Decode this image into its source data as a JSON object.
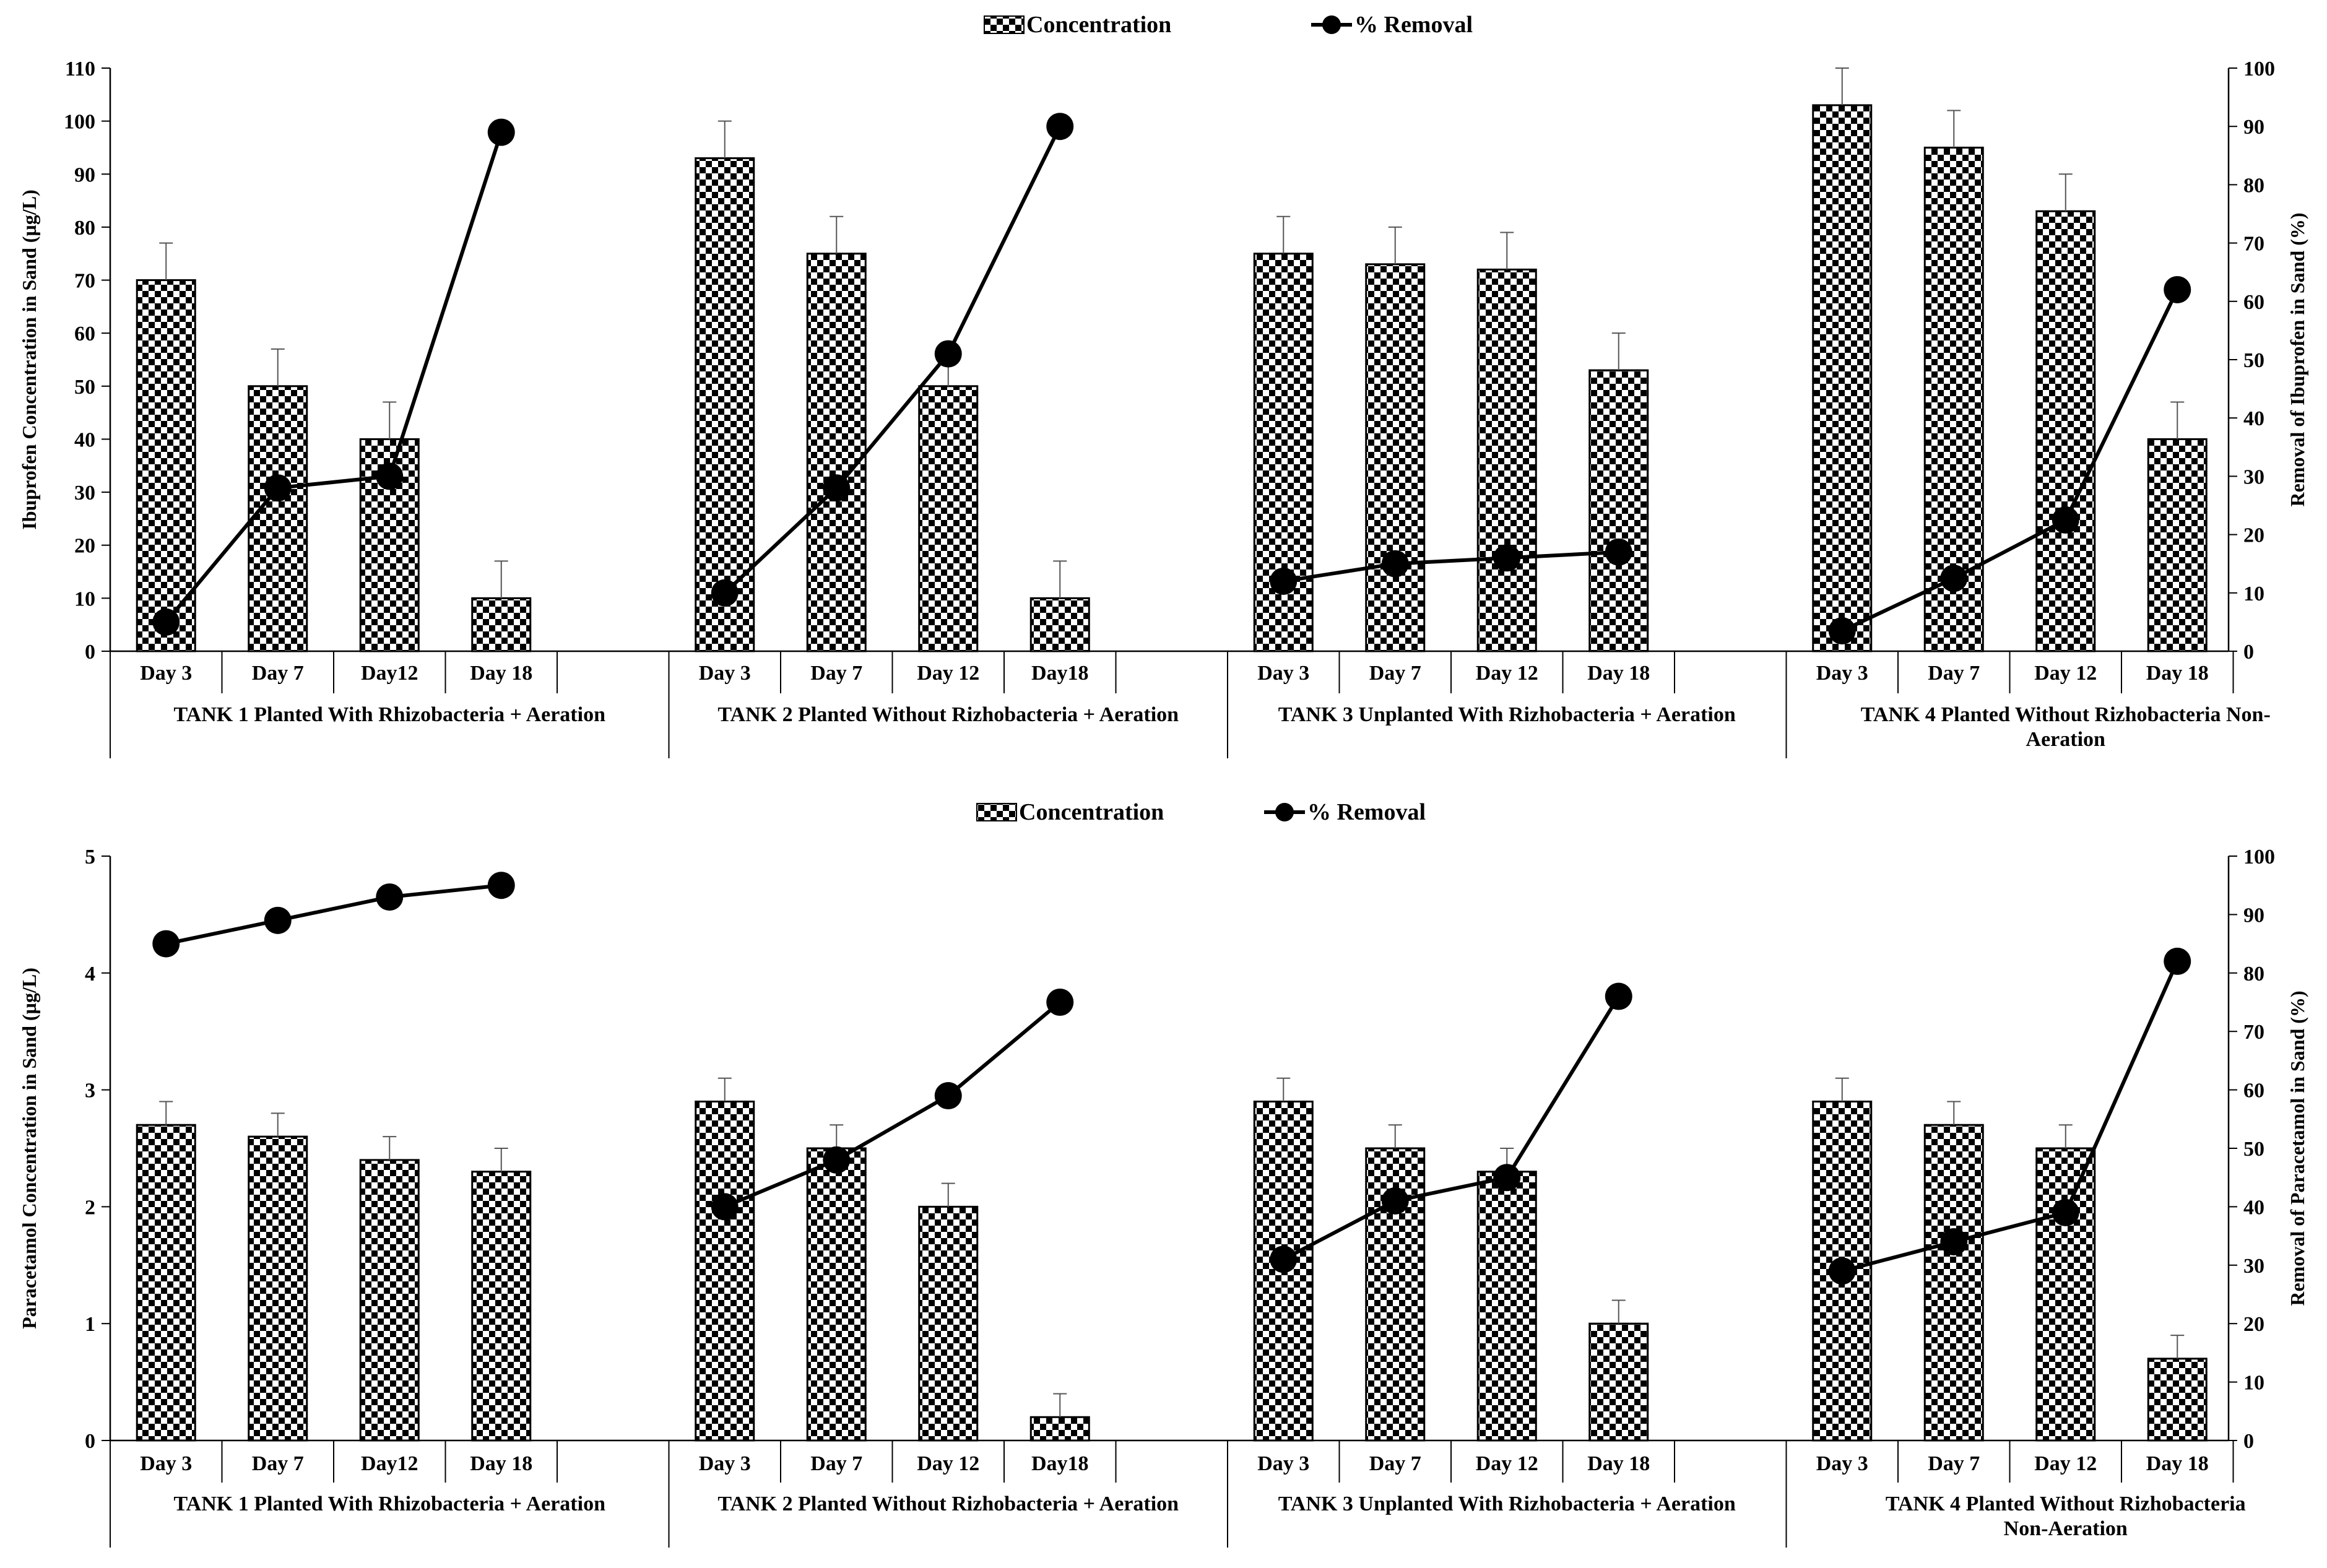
{
  "chart_data": [
    {
      "type": "bar+line",
      "title": "",
      "legend": {
        "position": "top-center",
        "entries": [
          "Concentration",
          "% Removal"
        ]
      },
      "ylabel": "Ibuprofen  Concentration in Sand (µg/L)",
      "y2label": "Removal of Ibuprofen in Sand  (%)",
      "ylim": [
        0,
        110
      ],
      "yticks": [
        "0",
        "10",
        "20",
        "30",
        "40",
        "50",
        "60",
        "70",
        "80",
        "90",
        "100",
        "110"
      ],
      "y2lim": [
        0,
        100
      ],
      "y2ticks": [
        "0",
        "10",
        "20",
        "30",
        "40",
        "50",
        "60",
        "70",
        "80",
        "90",
        "100"
      ],
      "groups": [
        {
          "name": "TANK 1 Planted With Rhizobacteria + Aeration",
          "name_lines": [
            "TANK 1 Planted With Rhizobacteria + Aeration"
          ],
          "days": [
            "Day 3",
            "Day 7",
            "Day12",
            "Day 18"
          ],
          "concentration": [
            70,
            50,
            40,
            10
          ],
          "error": [
            7,
            7,
            7,
            7
          ],
          "removal": [
            5,
            28,
            30,
            89
          ]
        },
        {
          "name": "TANK 2 Planted Without Rizhobacteria + Aeration",
          "name_lines": [
            "TANK 2 Planted Without Rizhobacteria + Aeration"
          ],
          "days": [
            "Day 3",
            "Day 7",
            "Day 12",
            "Day18"
          ],
          "concentration": [
            93,
            75,
            50,
            10
          ],
          "error": [
            7,
            7,
            7,
            7
          ],
          "removal": [
            10,
            28,
            51,
            90
          ]
        },
        {
          "name": "TANK 3 Unplanted With Rizhobacteria + Aeration",
          "name_lines": [
            "TANK 3 Unplanted With Rizhobacteria + Aeration"
          ],
          "days": [
            "Day 3",
            "Day 7",
            "Day 12",
            "Day 18"
          ],
          "concentration": [
            75,
            73,
            72,
            53
          ],
          "error": [
            7,
            7,
            7,
            7
          ],
          "removal": [
            12,
            15,
            16,
            17
          ]
        },
        {
          "name": "TANK 4 Planted Without Rizhobacteria  Non-Aeration",
          "name_lines": [
            "TANK 4 Planted Without Rizhobacteria  Non-",
            "Aeration"
          ],
          "days": [
            "Day 3",
            "Day 7",
            "Day 12",
            "Day 18"
          ],
          "concentration": [
            103,
            95,
            83,
            40
          ],
          "error": [
            7,
            7,
            7,
            7
          ],
          "removal": [
            3.5,
            12.5,
            22.5,
            62
          ]
        }
      ]
    },
    {
      "type": "bar+line",
      "title": "",
      "legend": {
        "position": "top-center",
        "entries": [
          "Concentration",
          "% Removal"
        ]
      },
      "ylabel": "Paracetamol Concentration in Sand (µg/L)",
      "y2label": "Removal of Paracetamol in Sand (%)",
      "ylim": [
        0,
        5
      ],
      "yticks": [
        "0",
        "1",
        "2",
        "3",
        "4",
        "5"
      ],
      "y2lim": [
        0,
        100
      ],
      "y2ticks": [
        "0",
        "10",
        "20",
        "30",
        "40",
        "50",
        "60",
        "70",
        "80",
        "90",
        "100"
      ],
      "groups": [
        {
          "name": "TANK 1 Planted With Rhizobacteria + Aeration",
          "name_lines": [
            "TANK 1 Planted With Rhizobacteria + Aeration"
          ],
          "days": [
            "Day 3",
            "Day 7",
            "Day12",
            "Day 18"
          ],
          "concentration": [
            2.7,
            2.6,
            2.4,
            2.3
          ],
          "error": [
            0.2,
            0.2,
            0.2,
            0.2
          ],
          "removal": [
            85,
            89,
            93,
            95
          ]
        },
        {
          "name": "TANK 2 Planted Without Rizhobacteria + Aeration",
          "name_lines": [
            "TANK 2 Planted Without Rizhobacteria + Aeration"
          ],
          "days": [
            "Day 3",
            "Day 7",
            "Day 12",
            "Day18"
          ],
          "concentration": [
            2.9,
            2.5,
            2.0,
            0.2
          ],
          "error": [
            0.2,
            0.2,
            0.2,
            0.2
          ],
          "removal": [
            40,
            48,
            59,
            75
          ]
        },
        {
          "name": "TANK 3 Unplanted With Rizhobacteria + Aeration",
          "name_lines": [
            "TANK 3 Unplanted With Rizhobacteria + Aeration"
          ],
          "days": [
            "Day 3",
            "Day 7",
            "Day 12",
            "Day 18"
          ],
          "concentration": [
            2.9,
            2.5,
            2.3,
            1.0
          ],
          "error": [
            0.2,
            0.2,
            0.2,
            0.2
          ],
          "removal": [
            31,
            41,
            45,
            76
          ]
        },
        {
          "name": "TANK 4 Planted Without Rizhobacteria Non-Aeration",
          "name_lines": [
            "TANK 4 Planted Without Rizhobacteria",
            "Non-Aeration"
          ],
          "days": [
            "Day 3",
            "Day 7",
            "Day 12",
            "Day 18"
          ],
          "concentration": [
            2.9,
            2.7,
            2.5,
            0.7
          ],
          "error": [
            0.2,
            0.2,
            0.2,
            0.2
          ],
          "removal": [
            29,
            34,
            39,
            82
          ]
        }
      ]
    }
  ]
}
